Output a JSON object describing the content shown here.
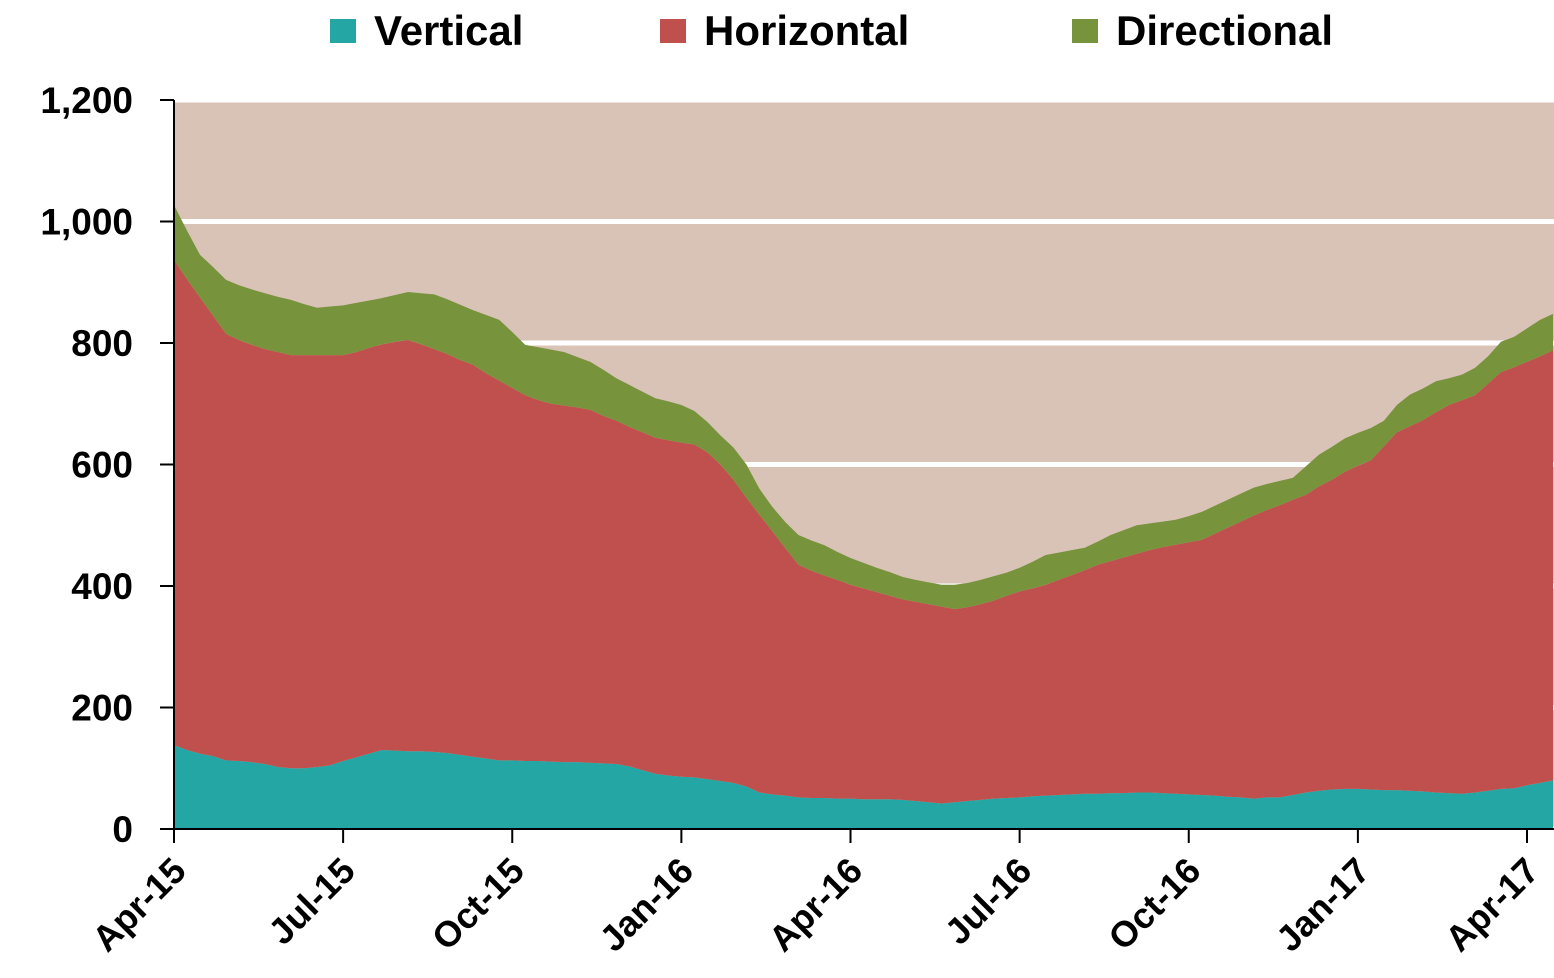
{
  "chart_data": {
    "type": "stacked-area",
    "categories": [
      "Apr-15",
      null,
      null,
      null,
      null,
      null,
      null,
      null,
      null,
      null,
      null,
      null,
      null,
      "Jul-15",
      null,
      null,
      null,
      null,
      null,
      null,
      null,
      null,
      null,
      null,
      null,
      null,
      "Oct-15",
      null,
      null,
      null,
      null,
      null,
      null,
      null,
      null,
      null,
      null,
      null,
      null,
      "Jan-16",
      null,
      null,
      null,
      null,
      null,
      null,
      null,
      null,
      null,
      null,
      null,
      null,
      "Apr-16",
      null,
      null,
      null,
      null,
      null,
      null,
      null,
      null,
      null,
      null,
      null,
      null,
      "Jul-16",
      null,
      null,
      null,
      null,
      null,
      null,
      null,
      null,
      null,
      null,
      null,
      null,
      "Oct-16",
      null,
      null,
      null,
      null,
      null,
      null,
      null,
      null,
      null,
      null,
      null,
      null,
      "Jan-17",
      null,
      null,
      null,
      null,
      null,
      null,
      null,
      null,
      null,
      null,
      null,
      null,
      "Apr-17",
      null,
      null
    ],
    "series": [
      {
        "name": "Vertical",
        "color": "#24a7a4",
        "values": [
          138,
          130,
          124,
          120,
          113,
          112,
          110,
          107,
          102,
          100,
          100,
          102,
          105,
          112,
          118,
          124,
          130,
          129,
          128,
          128,
          127,
          125,
          122,
          119,
          116,
          113,
          113,
          112,
          112,
          111,
          110,
          110,
          109,
          108,
          107,
          103,
          97,
          91,
          88,
          86,
          85,
          82,
          79,
          76,
          70,
          60,
          57,
          55,
          52,
          51,
          51,
          50,
          50,
          49,
          49,
          49,
          48,
          46,
          44,
          42,
          44,
          46,
          48,
          50,
          51,
          52,
          54,
          55,
          56,
          57,
          58,
          58,
          59,
          59,
          60,
          60,
          59,
          58,
          57,
          56,
          55,
          53,
          52,
          50,
          52,
          52,
          56,
          60,
          63,
          65,
          66,
          66,
          65,
          64,
          64,
          63,
          62,
          60,
          59,
          58,
          60,
          63,
          66,
          67,
          72,
          76,
          80
        ]
      },
      {
        "name": "Horizontal",
        "color": "#c0504d",
        "values": [
          799,
          775,
          751,
          725,
          702,
          693,
          687,
          683,
          683,
          680,
          680,
          678,
          675,
          668,
          667,
          668,
          668,
          673,
          677,
          670,
          663,
          657,
          650,
          645,
          634,
          625,
          613,
          602,
          594,
          589,
          587,
          584,
          581,
          572,
          565,
          559,
          556,
          553,
          552,
          550,
          548,
          538,
          521,
          499,
          475,
          457,
          433,
          407,
          383,
          374,
          366,
          360,
          352,
          347,
          341,
          335,
          330,
          328,
          326,
          324,
          318,
          319,
          322,
          326,
          333,
          339,
          342,
          347,
          354,
          361,
          368,
          377,
          382,
          388,
          393,
          399,
          405,
          410,
          415,
          420,
          431,
          443,
          454,
          466,
          473,
          481,
          486,
          490,
          501,
          510,
          522,
          532,
          542,
          566,
          589,
          600,
          611,
          626,
          639,
          648,
          654,
          670,
          686,
          693,
          697,
          702,
          708
        ]
      },
      {
        "name": "Directional",
        "color": "#77933c",
        "values": [
          90,
          80,
          70,
          80,
          89,
          90,
          91,
          92,
          91,
          91,
          84,
          78,
          80,
          82,
          81,
          78,
          76,
          77,
          79,
          84,
          90,
          90,
          91,
          90,
          96,
          100,
          92,
          83,
          87,
          89,
          88,
          83,
          79,
          76,
          70,
          69,
          67,
          65,
          64,
          62,
          55,
          50,
          48,
          53,
          55,
          43,
          40,
          43,
          49,
          50,
          50,
          46,
          44,
          42,
          40,
          39,
          37,
          36,
          36,
          36,
          40,
          40,
          40,
          40,
          38,
          39,
          44,
          49,
          45,
          41,
          37,
          38,
          43,
          45,
          47,
          44,
          42,
          41,
          43,
          46,
          46,
          46,
          46,
          46,
          43,
          40,
          36,
          47,
          52,
          54,
          55,
          54,
          53,
          42,
          45,
          52,
          52,
          51,
          44,
          42,
          45,
          45,
          50,
          50,
          55,
          60,
          60
        ]
      }
    ],
    "ylim": [
      0,
      1200
    ],
    "yticks": [
      0,
      200,
      400,
      600,
      800,
      {
        "value": 1000,
        "label": "1,000"
      },
      {
        "value": 1200,
        "label": "1,200"
      }
    ],
    "grid": true,
    "background": "#d9c3b7",
    "grid_color": "#ffffff"
  }
}
